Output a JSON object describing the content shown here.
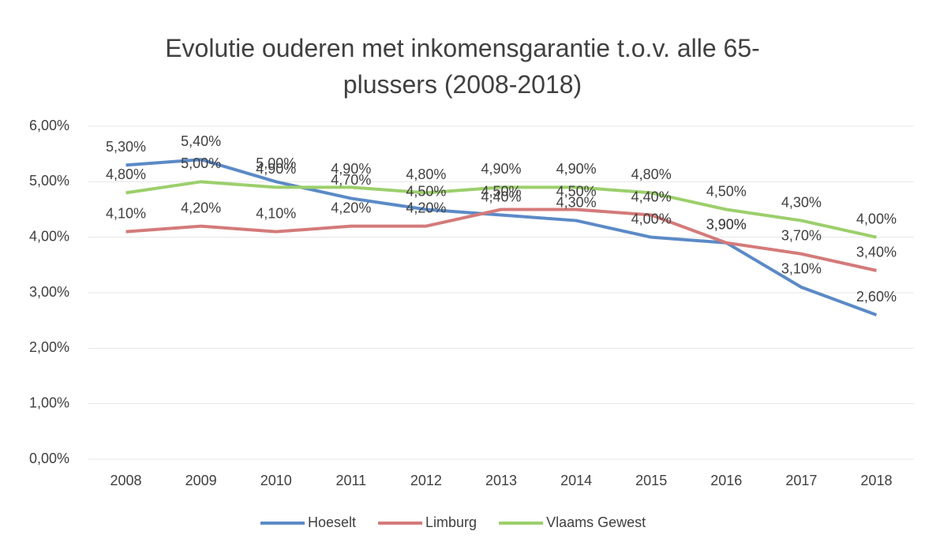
{
  "chart_data": {
    "type": "line",
    "title": "Evolutie ouderen met inkomensgarantie t.o.v. alle 65-plussers (2008-2018)",
    "categories": [
      "2008",
      "2009",
      "2010",
      "2011",
      "2012",
      "2013",
      "2014",
      "2015",
      "2016",
      "2017",
      "2018"
    ],
    "series": [
      {
        "name": "Hoeselt",
        "color": "#5b8ac6",
        "values": [
          5.3,
          5.4,
          5.0,
          4.7,
          4.5,
          4.4,
          4.3,
          4.0,
          3.9,
          3.1,
          2.6
        ],
        "value_labels": [
          "5,30%",
          "5,40%",
          "5,00%",
          "4,70%",
          "4,50%",
          "4,40%",
          "4,30%",
          "4,00%",
          "3,90%",
          "3,10%",
          "2,60%"
        ]
      },
      {
        "name": "Limburg",
        "color": "#d47a7a",
        "values": [
          4.1,
          4.2,
          4.1,
          4.2,
          4.2,
          4.5,
          4.5,
          4.4,
          3.9,
          3.7,
          3.4
        ],
        "value_labels": [
          "4,10%",
          "4,20%",
          "4,10%",
          "4,20%",
          "4,20%",
          "4,50%",
          "4,50%",
          "4,40%",
          "3,90%",
          "3,70%",
          "3,40%"
        ]
      },
      {
        "name": "Vlaams Gewest",
        "color": "#9ccf6c",
        "values": [
          4.8,
          5.0,
          4.9,
          4.9,
          4.8,
          4.9,
          4.9,
          4.8,
          4.5,
          4.3,
          4.0
        ],
        "value_labels": [
          "4,80%",
          "5,00%",
          "4,90%",
          "4,90%",
          "4,80%",
          "4,90%",
          "4,90%",
          "4,80%",
          "4,50%",
          "4,30%",
          "4,00%"
        ]
      }
    ],
    "ylim": [
      0,
      6
    ],
    "yticks": [
      {
        "value": 0,
        "label": "0,00%"
      },
      {
        "value": 1,
        "label": "1,00%"
      },
      {
        "value": 2,
        "label": "2,00%"
      },
      {
        "value": 3,
        "label": "3,00%"
      },
      {
        "value": 4,
        "label": "4,00%"
      },
      {
        "value": 5,
        "label": "5,00%"
      },
      {
        "value": 6,
        "label": "6,00%"
      }
    ],
    "grid": true,
    "legend": "bottom"
  }
}
